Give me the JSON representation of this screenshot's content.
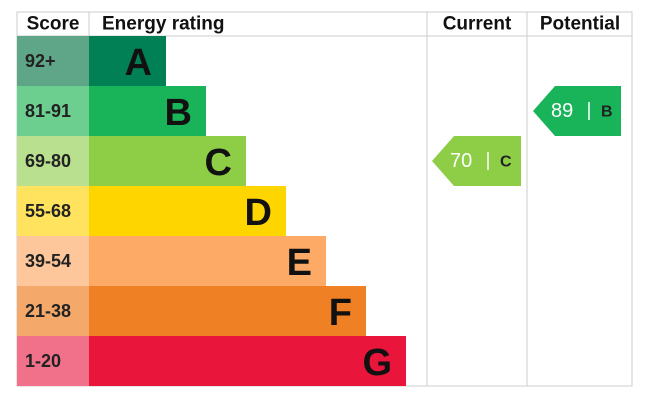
{
  "headers": {
    "score": "Score",
    "rating": "Energy rating",
    "current": "Current",
    "potential": "Potential"
  },
  "bands": [
    {
      "score": "92+",
      "letter": "A",
      "color": "#008054",
      "light": "#5fa688"
    },
    {
      "score": "81-91",
      "letter": "B",
      "color": "#19b459",
      "light": "#6ccf8f"
    },
    {
      "score": "69-80",
      "letter": "C",
      "color": "#8dce46",
      "light": "#b9e08f"
    },
    {
      "score": "55-68",
      "letter": "D",
      "color": "#ffd500",
      "light": "#ffe35e"
    },
    {
      "score": "39-54",
      "letter": "E",
      "color": "#fcaa65",
      "light": "#fdc79b"
    },
    {
      "score": "21-38",
      "letter": "F",
      "color": "#ef8023",
      "light": "#f4a96b"
    },
    {
      "score": "1-20",
      "letter": "G",
      "color": "#e9153b",
      "light": "#f07189"
    }
  ],
  "current": {
    "value": 70,
    "letter": "C"
  },
  "potential": {
    "value": 89,
    "letter": "B"
  }
}
